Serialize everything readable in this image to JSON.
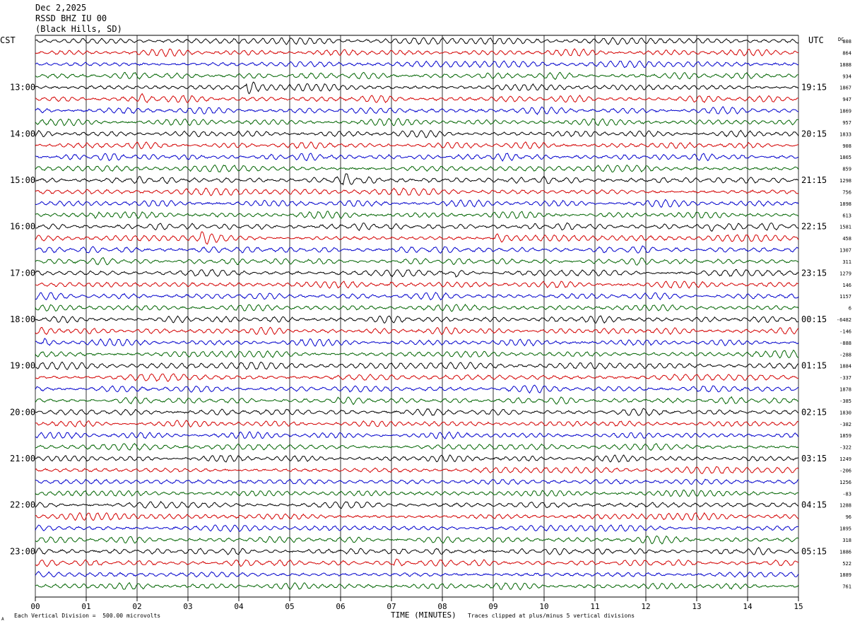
{
  "header": {
    "date": "Dec 2,2025",
    "station": "RSSD BHZ IU 00",
    "location": "(Black Hills, SD)"
  },
  "left_axis_label": "CST",
  "right_axis_label": "UTC",
  "dc_label": "DC",
  "footer": {
    "scale_note": "Each Vertical Division =  500.00 microvolts",
    "xlabel": "TIME (MINUTES)",
    "clip_note": "Traces clipped at plus/minus 5 vertical divisions",
    "corner_mark": "A"
  },
  "colors": {
    "trace_cycle": [
      "#000000",
      "#d40000",
      "#0000cc",
      "#006400"
    ],
    "grid": "#000000"
  },
  "chart_data": {
    "type": "line",
    "description_kind": "helicorder",
    "trace_cycle_minutes": 15,
    "traces_per_hour": 4,
    "xlabel": "TIME (MINUTES)",
    "xlim": [
      0,
      15
    ],
    "x_ticks": [
      "00",
      "01",
      "02",
      "03",
      "04",
      "05",
      "06",
      "07",
      "08",
      "09",
      "10",
      "11",
      "12",
      "13",
      "14",
      "15"
    ],
    "cst_hour_labels": [
      {
        "row": 4,
        "label": "13:00"
      },
      {
        "row": 8,
        "label": "14:00"
      },
      {
        "row": 12,
        "label": "15:00"
      },
      {
        "row": 16,
        "label": "16:00"
      },
      {
        "row": 20,
        "label": "17:00"
      },
      {
        "row": 24,
        "label": "18:00"
      },
      {
        "row": 28,
        "label": "19:00"
      },
      {
        "row": 32,
        "label": "20:00"
      },
      {
        "row": 36,
        "label": "21:00"
      },
      {
        "row": 40,
        "label": "22:00"
      },
      {
        "row": 44,
        "label": "23:00"
      }
    ],
    "utc_labels": [
      {
        "row": 4,
        "label": "19:15"
      },
      {
        "row": 8,
        "label": "20:15"
      },
      {
        "row": 12,
        "label": "21:15"
      },
      {
        "row": 16,
        "label": "22:15"
      },
      {
        "row": 20,
        "label": "23:15"
      },
      {
        "row": 24,
        "label": "00:15"
      },
      {
        "row": 28,
        "label": "01:15"
      },
      {
        "row": 32,
        "label": "02:15"
      },
      {
        "row": 36,
        "label": "03:15"
      },
      {
        "row": 40,
        "label": "04:15"
      },
      {
        "row": 44,
        "label": "05:15"
      }
    ],
    "dc_offsets": [
      "808",
      "864",
      "1888",
      "934",
      "1867",
      "947",
      "1869",
      "957",
      "1833",
      "908",
      "1865",
      "859",
      "1298",
      "756",
      "1898",
      "613",
      "1581",
      "458",
      "1307",
      "311",
      "1279",
      "146",
      "1157",
      "6",
      "-6482",
      "-146",
      "-888",
      "-288",
      "1884",
      "-337",
      "1878",
      "-385",
      "1830",
      "-382",
      "1859",
      "-322",
      "1249",
      "-206",
      "1256",
      "-83",
      "1288",
      "96",
      "1895",
      "318",
      "1886",
      "522",
      "1889",
      "761"
    ],
    "trace_count": 48,
    "event_bursts": [
      {
        "row": 4,
        "minute": 4.2,
        "strength": 2.5
      },
      {
        "row": 5,
        "minute": 2.1,
        "strength": 2.0
      },
      {
        "row": 12,
        "minute": 6.1,
        "strength": 2.0
      },
      {
        "row": 15,
        "minute": 1.2,
        "strength": 1.8
      },
      {
        "row": 17,
        "minute": 3.3,
        "strength": 2.6
      },
      {
        "row": 17,
        "minute": 9.1,
        "strength": 2.2
      },
      {
        "row": 16,
        "minute": 13.3,
        "strength": 2.0
      },
      {
        "row": 20,
        "minute": 8.3,
        "strength": 2.0
      },
      {
        "row": 21,
        "minute": 7.0,
        "strength": 1.8
      },
      {
        "row": 26,
        "minute": 0.2,
        "strength": 1.8
      },
      {
        "row": 45,
        "minute": 7.1,
        "strength": 1.6
      }
    ]
  }
}
